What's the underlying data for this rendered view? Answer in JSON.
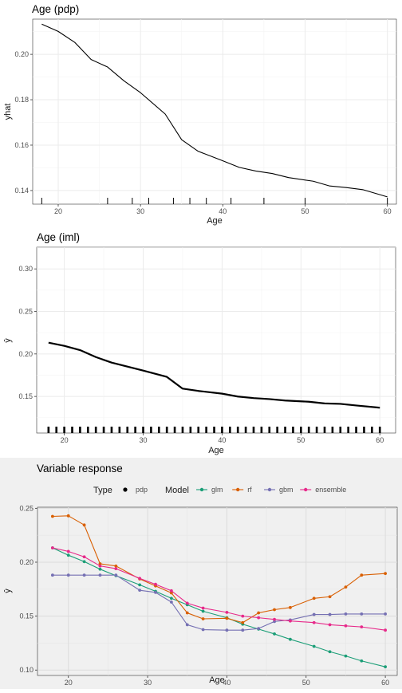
{
  "chart_data": [
    {
      "type": "line",
      "title": "Age (pdp)",
      "xlabel": "Age",
      "ylabel": "yhat",
      "xlim": [
        16.9,
        61.1
      ],
      "ylim": [
        0.134,
        0.2155
      ],
      "xticks": [
        20,
        30,
        40,
        50,
        60
      ],
      "yticks": [
        0.14,
        0.16,
        0.18,
        0.2
      ],
      "ytick_labels": [
        "0.14",
        "0.16",
        "0.18",
        "0.20"
      ],
      "grid": true,
      "x": [
        18,
        20,
        22,
        24,
        26,
        28,
        30,
        33,
        35,
        37,
        40,
        42,
        44,
        46,
        48,
        51,
        53,
        55,
        57,
        60
      ],
      "series": [
        {
          "values": [
            0.2133,
            0.2101,
            0.2053,
            0.1977,
            0.1944,
            0.1883,
            0.1831,
            0.1737,
            0.1624,
            0.1573,
            0.1531,
            0.1502,
            0.1486,
            0.1475,
            0.1457,
            0.1441,
            0.142,
            0.1413,
            0.1404,
            0.1372
          ]
        }
      ],
      "rug": [
        18,
        26,
        29,
        31,
        34,
        36,
        38,
        41,
        45,
        50,
        60
      ]
    },
    {
      "type": "line",
      "title": "Age (iml)",
      "xlabel": "Age",
      "ylabel": "ŷ",
      "xlim": [
        16.5,
        62.0
      ],
      "ylim": [
        0.107,
        0.3255
      ],
      "xticks": [
        20,
        30,
        40,
        50,
        60
      ],
      "yticks": [
        0.15,
        0.2,
        0.25,
        0.3
      ],
      "ytick_labels": [
        "0.15",
        "0.20",
        "0.25",
        "0.30"
      ],
      "grid": true,
      "x": [
        18,
        20,
        22,
        24,
        26,
        28,
        30,
        33,
        35,
        37,
        40,
        42,
        44,
        46,
        48,
        51,
        53,
        55,
        57,
        60
      ],
      "series": [
        {
          "values": [
            0.2133,
            0.2095,
            0.2045,
            0.1963,
            0.1898,
            0.1851,
            0.1804,
            0.173,
            0.1592,
            0.1565,
            0.1533,
            0.1499,
            0.1481,
            0.1469,
            0.1452,
            0.1438,
            0.1418,
            0.1413,
            0.1394,
            0.1368
          ]
        }
      ],
      "rug": [
        18,
        19,
        20,
        21,
        22,
        23,
        24,
        25,
        26,
        27,
        28,
        29,
        30,
        31,
        32,
        33,
        34,
        35,
        36,
        37,
        38,
        39,
        40,
        41,
        42,
        43,
        44,
        45,
        46,
        47,
        48,
        49,
        50,
        51,
        52,
        53,
        54,
        55,
        56,
        57,
        58,
        59,
        60
      ]
    },
    {
      "type": "line",
      "title": "Variable response",
      "xlabel": "Age",
      "ylabel": "ŷ",
      "xlim": [
        16.1,
        61.5
      ],
      "ylim": [
        0.095,
        0.251
      ],
      "xticks": [
        20,
        30,
        40,
        50,
        60
      ],
      "yticks": [
        0.1,
        0.15,
        0.2,
        0.25
      ],
      "ytick_labels": [
        "0.10",
        "0.15",
        "0.20",
        "0.25"
      ],
      "grid": true,
      "legend_position": "top",
      "legend_type_title": "Type",
      "legend_type_items": [
        "pdp"
      ],
      "legend_model_title": "Model",
      "x": [
        18,
        20,
        22,
        24,
        26,
        29,
        31,
        33,
        35,
        37,
        40,
        42,
        44,
        46,
        48,
        51,
        53,
        55,
        57,
        60
      ],
      "series": [
        {
          "name": "glm",
          "color": "#1b9e77",
          "values": [
            0.2133,
            0.2065,
            0.2005,
            0.1935,
            0.1875,
            0.179,
            0.173,
            0.1665,
            0.1605,
            0.1545,
            0.1485,
            0.1425,
            0.138,
            0.1335,
            0.1285,
            0.122,
            0.117,
            0.113,
            0.1085,
            0.103
          ]
        },
        {
          "name": "rf",
          "color": "#d95f02",
          "values": [
            0.2425,
            0.243,
            0.2345,
            0.1985,
            0.1965,
            0.1845,
            0.178,
            0.1715,
            0.153,
            0.1475,
            0.148,
            0.144,
            0.153,
            0.156,
            0.158,
            0.1665,
            0.168,
            0.177,
            0.188,
            0.1895
          ]
        },
        {
          "name": "gbm",
          "color": "#7570b3",
          "values": [
            0.188,
            0.188,
            0.188,
            0.188,
            0.188,
            0.174,
            0.172,
            0.163,
            0.142,
            0.1375,
            0.137,
            0.137,
            0.1385,
            0.145,
            0.1465,
            0.1515,
            0.1515,
            0.152,
            0.152,
            0.152
          ]
        },
        {
          "name": "ensemble",
          "color": "#e7298a",
          "values": [
            0.2133,
            0.21,
            0.205,
            0.1965,
            0.194,
            0.185,
            0.1795,
            0.1735,
            0.162,
            0.1575,
            0.1535,
            0.15,
            0.1485,
            0.147,
            0.1455,
            0.144,
            0.142,
            0.141,
            0.14,
            0.137
          ]
        }
      ]
    }
  ]
}
